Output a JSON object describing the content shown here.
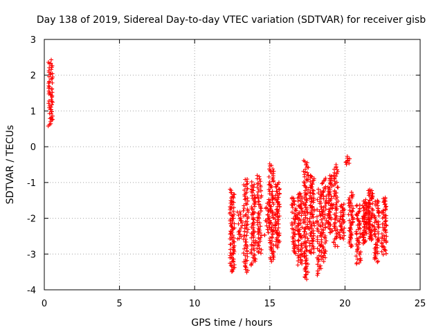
{
  "chart_data": {
    "type": "scatter",
    "title": "Day 138 of 2019, Sidereal Day-to-day VTEC variation (SDTVAR) for receiver gisb",
    "xlabel": "GPS time / hours",
    "ylabel": "SDTVAR / TECUs",
    "xlim": [
      0,
      25
    ],
    "ylim": [
      -4,
      3
    ],
    "xticks": [
      0,
      5,
      10,
      15,
      20,
      25
    ],
    "yticks": [
      -4,
      -3,
      -2,
      -1,
      0,
      1,
      2,
      3
    ],
    "grid": true,
    "marker": "+",
    "series_color": "#ff0000",
    "clusters": [
      {
        "x": 0.42,
        "ymin": 0.6,
        "ymax": 2.4,
        "n": 60
      },
      {
        "x": 12.5,
        "ymin": -3.5,
        "ymax": -1.2,
        "n": 90
      },
      {
        "x": 13.0,
        "ymin": -2.6,
        "ymax": -1.8,
        "n": 20
      },
      {
        "x": 13.4,
        "ymin": -3.5,
        "ymax": -0.9,
        "n": 70
      },
      {
        "x": 13.9,
        "ymin": -3.3,
        "ymax": -1.0,
        "n": 70
      },
      {
        "x": 14.3,
        "ymin": -3.0,
        "ymax": -0.8,
        "n": 60
      },
      {
        "x": 14.8,
        "ymin": -2.5,
        "ymax": -1.5,
        "n": 25
      },
      {
        "x": 15.1,
        "ymin": -3.2,
        "ymax": -0.5,
        "n": 90
      },
      {
        "x": 15.5,
        "ymin": -2.8,
        "ymax": -1.0,
        "n": 70
      },
      {
        "x": 16.6,
        "ymin": -3.0,
        "ymax": -1.4,
        "n": 50
      },
      {
        "x": 17.0,
        "ymin": -3.3,
        "ymax": -1.3,
        "n": 70
      },
      {
        "x": 17.4,
        "ymin": -3.7,
        "ymax": -0.4,
        "n": 100
      },
      {
        "x": 17.8,
        "ymin": -3.0,
        "ymax": -0.8,
        "n": 80
      },
      {
        "x": 18.3,
        "ymin": -3.6,
        "ymax": -1.2,
        "n": 60
      },
      {
        "x": 18.6,
        "ymin": -3.2,
        "ymax": -0.9,
        "n": 60
      },
      {
        "x": 19.0,
        "ymin": -2.4,
        "ymax": -0.8,
        "n": 60
      },
      {
        "x": 19.4,
        "ymin": -2.8,
        "ymax": -0.5,
        "n": 60
      },
      {
        "x": 19.8,
        "ymin": -2.6,
        "ymax": -1.6,
        "n": 40
      },
      {
        "x": 20.15,
        "ymin": -0.5,
        "ymax": -0.3,
        "n": 10
      },
      {
        "x": 20.4,
        "ymin": -2.8,
        "ymax": -1.3,
        "n": 50
      },
      {
        "x": 20.9,
        "ymin": -3.3,
        "ymax": -1.6,
        "n": 50
      },
      {
        "x": 21.3,
        "ymin": -2.7,
        "ymax": -1.5,
        "n": 60
      },
      {
        "x": 21.7,
        "ymin": -2.6,
        "ymax": -1.2,
        "n": 70
      },
      {
        "x": 22.1,
        "ymin": -3.2,
        "ymax": -1.5,
        "n": 60
      },
      {
        "x": 22.6,
        "ymin": -3.0,
        "ymax": -1.4,
        "n": 60
      }
    ]
  }
}
